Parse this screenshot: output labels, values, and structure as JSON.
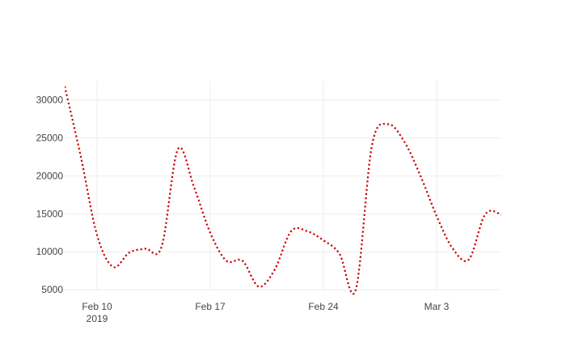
{
  "chart_data": {
    "type": "line",
    "title": "",
    "xlabel": "",
    "ylabel": "",
    "grid": true,
    "legend": "none",
    "x_range": [
      "2019-02-08",
      "2019-03-06"
    ],
    "y_range": [
      4800,
      32500
    ],
    "x_ticks": [
      {
        "date": "2019-02-10",
        "label": "Feb 10",
        "sublabel": "2019"
      },
      {
        "date": "2019-02-17",
        "label": "Feb 17",
        "sublabel": ""
      },
      {
        "date": "2019-02-24",
        "label": "Feb 24",
        "sublabel": ""
      },
      {
        "date": "2019-03-03",
        "label": "Mar 3",
        "sublabel": ""
      }
    ],
    "y_ticks": [
      {
        "value": 5000,
        "label": "5000"
      },
      {
        "value": 10000,
        "label": "10000"
      },
      {
        "value": 15000,
        "label": "15000"
      },
      {
        "value": 20000,
        "label": "20000"
      },
      {
        "value": 25000,
        "label": "25000"
      },
      {
        "value": 30000,
        "label": "30000"
      }
    ],
    "series": [
      {
        "color": "#cc0000",
        "line_style": "dotted",
        "points": [
          {
            "x": "2019-02-08",
            "y": 31800
          },
          {
            "x": "2019-02-09",
            "y": 22500
          },
          {
            "x": "2019-02-10",
            "y": 12200
          },
          {
            "x": "2019-02-11",
            "y": 8000
          },
          {
            "x": "2019-02-12",
            "y": 9900
          },
          {
            "x": "2019-02-13",
            "y": 10400
          },
          {
            "x": "2019-02-14",
            "y": 10700
          },
          {
            "x": "2019-02-15",
            "y": 23500
          },
          {
            "x": "2019-02-16",
            "y": 18500
          },
          {
            "x": "2019-02-17",
            "y": 12500
          },
          {
            "x": "2019-02-18",
            "y": 8800
          },
          {
            "x": "2019-02-19",
            "y": 8800
          },
          {
            "x": "2019-02-20",
            "y": 5400
          },
          {
            "x": "2019-02-21",
            "y": 7700
          },
          {
            "x": "2019-02-22",
            "y": 12700
          },
          {
            "x": "2019-02-23",
            "y": 12700
          },
          {
            "x": "2019-02-24",
            "y": 11500
          },
          {
            "x": "2019-02-25",
            "y": 9700
          },
          {
            "x": "2019-02-26",
            "y": 5000
          },
          {
            "x": "2019-02-27",
            "y": 24000
          },
          {
            "x": "2019-02-28",
            "y": 26800
          },
          {
            "x": "2019-03-01",
            "y": 24500
          },
          {
            "x": "2019-03-02",
            "y": 20000
          },
          {
            "x": "2019-03-03",
            "y": 14700
          },
          {
            "x": "2019-03-04",
            "y": 10400
          },
          {
            "x": "2019-03-05",
            "y": 9000
          },
          {
            "x": "2019-03-06",
            "y": 14900
          },
          {
            "x": "2019-03-07",
            "y": 14900
          },
          {
            "x": "2019-03-08",
            "y": 13500
          }
        ]
      }
    ]
  }
}
